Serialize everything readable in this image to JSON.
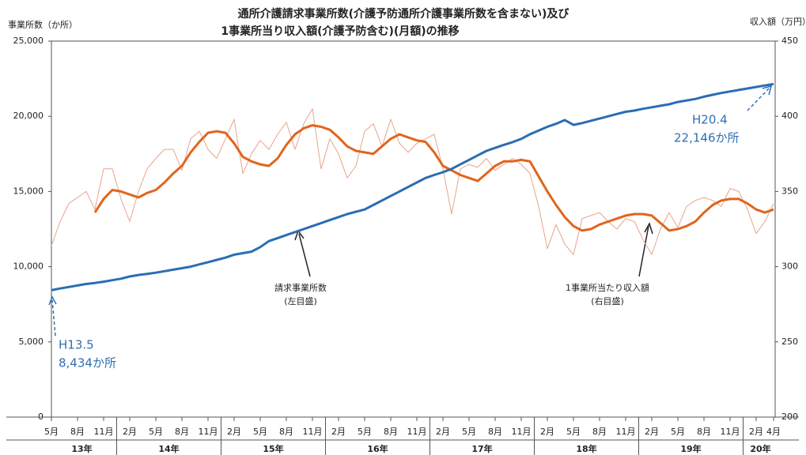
{
  "chart_data": {
    "type": "line",
    "title": [
      "通所介護請求事業所数(介護予防通所介護事業所数を含まない)及び",
      "1事業所当り収入額(介護予防含む)(月額)の推移"
    ],
    "y_label": "事業所数（か所）",
    "y2_label": "収入額（万円）",
    "categories": [
      "5月",
      null,
      null,
      "8月",
      null,
      null,
      "11月",
      null,
      null,
      "2月",
      null,
      null,
      "5月",
      null,
      null,
      "8月",
      null,
      null,
      "11月",
      null,
      null,
      "2月",
      null,
      null,
      "5月",
      null,
      null,
      "8月",
      null,
      null,
      "11月",
      null,
      null,
      "2月",
      null,
      null,
      "5月",
      null,
      null,
      "8月",
      null,
      null,
      "11月",
      null,
      null,
      "2月",
      null,
      null,
      "5月",
      null,
      null,
      "8月",
      null,
      null,
      "11月",
      null,
      null,
      "2月",
      null,
      null,
      "5月",
      null,
      null,
      "8月",
      null,
      null,
      "11月",
      null,
      null,
      "2月",
      null,
      null,
      "5月",
      null,
      null,
      "8月",
      null,
      null,
      "11月",
      null,
      null,
      "2月",
      null,
      "4月"
    ],
    "years": [
      "13年",
      "14年",
      "15年",
      "16年",
      "17年",
      "18年",
      "19年",
      "20年"
    ],
    "ylim": [
      0,
      25000
    ],
    "yticks": [
      0,
      {
        "value": 5000,
        "label": "5,000"
      },
      {
        "value": 10000,
        "label": "10,000"
      },
      {
        "value": 15000,
        "label": "15,000"
      },
      {
        "value": 20000,
        "label": "20,000"
      },
      {
        "value": 25000,
        "label": "25,000"
      }
    ],
    "y2lim": [
      200,
      450
    ],
    "y2ticks": [
      200,
      250,
      300,
      350,
      400,
      450
    ],
    "series": [
      {
        "color": "#e8a48c",
        "width": 1,
        "axis": "y2",
        "values": [
          314,
          330,
          342,
          346,
          350,
          338,
          365,
          365,
          345,
          330,
          350,
          365,
          372,
          378,
          378,
          364,
          385,
          390,
          378,
          372,
          385,
          398,
          362,
          375,
          384,
          378,
          388,
          396,
          378,
          395,
          405,
          365,
          385,
          375,
          359,
          367,
          390,
          395,
          380,
          398,
          382,
          376,
          382,
          385,
          388,
          365,
          335,
          365,
          368,
          366,
          372,
          364,
          368,
          372,
          368,
          362,
          340,
          312,
          328,
          315,
          308,
          332,
          334,
          336,
          330,
          325,
          332,
          330,
          318,
          308,
          325,
          336,
          326,
          340,
          344,
          346,
          344,
          340,
          352,
          350,
          338,
          322,
          330,
          342
        ]
      },
      {
        "color": "#e0651c",
        "width": 3,
        "axis": "y2",
        "values": [
          null,
          null,
          null,
          null,
          null,
          336,
          345,
          351,
          350,
          348,
          346,
          349,
          351,
          356,
          362,
          367,
          376,
          383,
          389,
          390,
          389,
          382,
          373,
          370,
          368,
          367,
          372,
          381,
          388,
          392,
          394,
          393,
          391,
          386,
          380,
          377,
          376,
          375,
          380,
          385,
          388,
          386,
          384,
          383,
          376,
          367,
          364,
          361,
          359,
          357,
          362,
          367,
          370,
          370,
          371,
          370,
          360,
          350,
          341,
          333,
          327,
          324,
          325,
          328,
          330,
          332,
          334,
          335,
          335,
          334,
          329,
          324,
          325,
          327,
          330,
          336,
          341,
          344,
          345,
          345,
          342,
          338,
          336,
          338
        ]
      },
      {
        "color": "#2a6db3",
        "width": 3,
        "values": [
          8434,
          8550,
          8650,
          8750,
          8850,
          8920,
          9000,
          9100,
          9200,
          9350,
          9450,
          9520,
          9600,
          9700,
          9800,
          9900,
          10000,
          10150,
          10300,
          10450,
          10600,
          10800,
          10900,
          11000,
          11300,
          11700,
          11900,
          12100,
          12300,
          12500,
          12700,
          12900,
          13100,
          13300,
          13500,
          13650,
          13800,
          14100,
          14400,
          14700,
          15000,
          15300,
          15600,
          15900,
          16100,
          16280,
          16500,
          16800,
          17100,
          17400,
          17700,
          17900,
          18100,
          18280,
          18500,
          18800,
          19050,
          19300,
          19500,
          19750,
          19430,
          19550,
          19700,
          19850,
          20000,
          20150,
          20300,
          20380,
          20500,
          20600,
          20700,
          20800,
          20950,
          21050,
          21150,
          21300,
          21430,
          21550,
          21650,
          21750,
          21850,
          21950,
          22050,
          22146
        ]
      }
    ],
    "annotations": [
      [
        "H13.5",
        "8,434か所"
      ],
      [
        "H20.4",
        "22,146か所"
      ],
      [
        "請求事業所数",
        "(左目盛)"
      ],
      [
        "1事業所当たり収入額",
        "(右目盛)"
      ]
    ]
  }
}
